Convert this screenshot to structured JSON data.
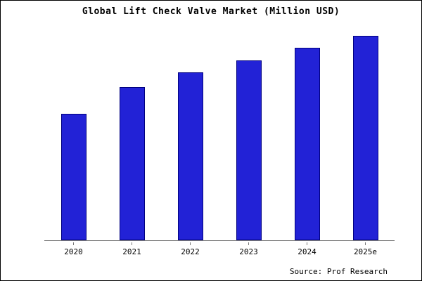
{
  "title": "Global Lift Check Valve Market (Million USD)",
  "source": "Source: Prof Research",
  "colors": {
    "bar_fill": "#2222d6",
    "bar_border": "#000080",
    "axis": "#7a7a7a",
    "background": "#ffffff",
    "frame_border": "#000000"
  },
  "chart_data": {
    "type": "bar",
    "title": "Global Lift Check Valve Market (Million USD)",
    "categories": [
      "2020",
      "2021",
      "2022",
      "2023",
      "2024",
      "2025e"
    ],
    "values": [
      62,
      75,
      82,
      88,
      94,
      100
    ],
    "xlabel": "",
    "ylabel": "",
    "ylim": [
      0,
      100
    ],
    "grid": false,
    "legend": false,
    "y_axis_visible": false,
    "source": "Source: Prof Research"
  }
}
